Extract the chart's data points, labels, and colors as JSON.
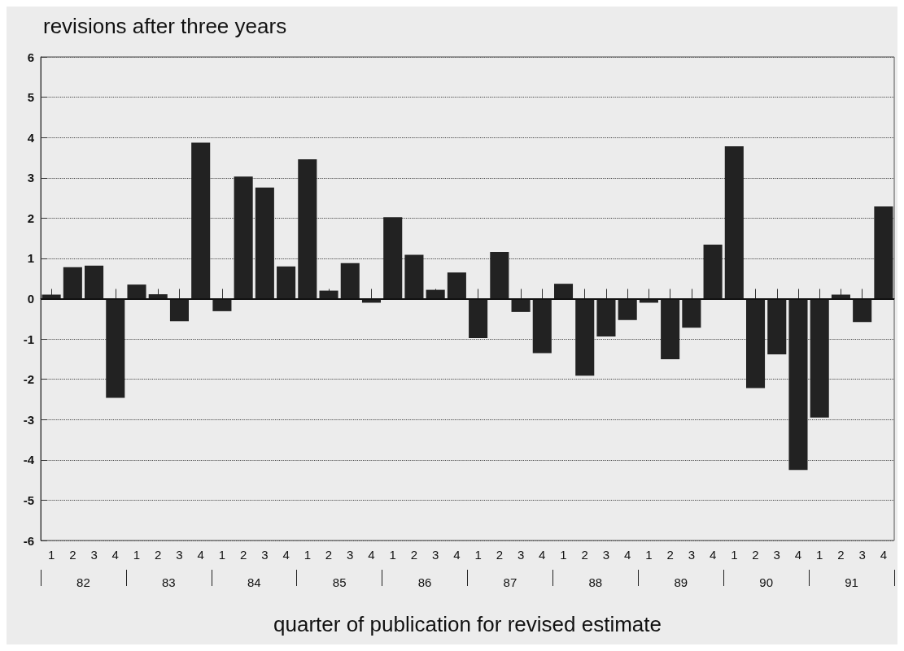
{
  "chart_data": {
    "type": "bar",
    "title": "revisions after three years",
    "xlabel": "quarter of publication for revised estimate",
    "categories": [
      "1",
      "2",
      "3",
      "4",
      "1",
      "2",
      "3",
      "4",
      "1",
      "2",
      "3",
      "4",
      "1",
      "2",
      "3",
      "4",
      "1",
      "2",
      "3",
      "4",
      "1",
      "2",
      "3",
      "4",
      "1",
      "2",
      "3",
      "4",
      "1",
      "2",
      "3",
      "4",
      "1",
      "2",
      "3",
      "4",
      "1",
      "2",
      "3",
      "4"
    ],
    "values": [
      0.1,
      0.78,
      0.82,
      -2.46,
      0.35,
      0.11,
      -0.56,
      3.87,
      -0.31,
      3.03,
      2.76,
      0.8,
      3.46,
      0.2,
      0.88,
      -0.1,
      2.02,
      1.09,
      0.22,
      0.65,
      -0.98,
      1.16,
      -0.33,
      -1.35,
      0.37,
      -1.91,
      -0.94,
      -0.53,
      -0.1,
      -1.5,
      -0.72,
      1.34,
      3.78,
      -2.22,
      -1.38,
      -4.25,
      -2.95,
      0.1,
      -0.58,
      2.29
    ],
    "color": "#222222",
    "ylim": [
      -6,
      6
    ],
    "yticks": [
      -6,
      -5,
      -4,
      -3,
      -2,
      -1,
      0,
      1,
      2,
      3,
      4,
      5,
      6
    ],
    "grid": "y",
    "ref_lines": [
      {
        "axis": "y",
        "value": 0,
        "color": "#111111"
      }
    ],
    "annotations": [
      "82",
      "83",
      "84",
      "85",
      "86",
      "87",
      "88",
      "89",
      "90",
      "91"
    ]
  }
}
